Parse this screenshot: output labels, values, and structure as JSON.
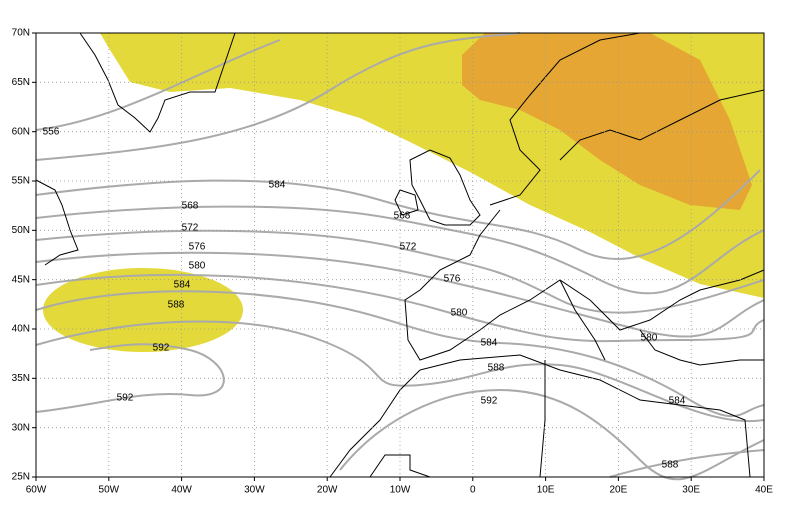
{
  "map": {
    "lon_labels": [
      "60W",
      "50W",
      "40W",
      "30W",
      "20W",
      "10W",
      "0",
      "10E",
      "20E",
      "30E",
      "40E"
    ],
    "lat_labels": [
      "70N",
      "65N",
      "60N",
      "55N",
      "50N",
      "45N",
      "40N",
      "35N",
      "30N",
      "25N"
    ],
    "contour_labels": [
      "556",
      "584",
      "568",
      "568",
      "572",
      "572",
      "576",
      "576",
      "580",
      "580",
      "580",
      "584",
      "584",
      "588",
      "588",
      "588",
      "592",
      "592",
      "592",
      "584"
    ]
  }
}
